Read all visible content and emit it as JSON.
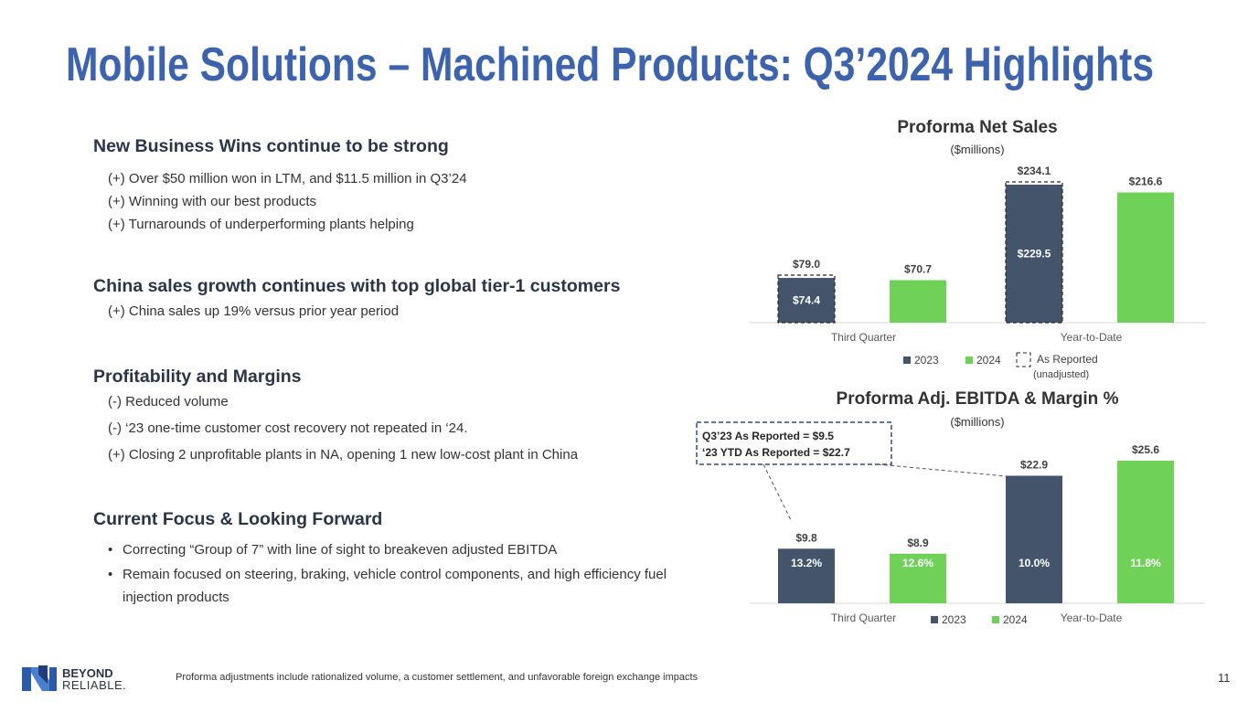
{
  "title": "Mobile Solutions – Machined Products: Q3’2024 Highlights",
  "sections": [
    {
      "heading": "New Business Wins continue to be strong",
      "items": [
        "(+) Over $50 million won in LTM, and $11.5 million in Q3’24",
        "(+) Winning with our best products",
        "(+) Turnarounds of underperforming plants helping"
      ]
    },
    {
      "heading": "China sales growth continues with top global tier-1 customers",
      "items": [
        "(+) China sales up 19% versus prior year period"
      ]
    },
    {
      "heading": "Profitability and Margins",
      "items": [
        "(-) Reduced volume",
        "(-) ‘23 one-time customer cost recovery not repeated in ‘24.",
        "(+) Closing 2 unprofitable plants in NA, opening 1 new low-cost plant in China"
      ]
    },
    {
      "heading": "Current Focus & Looking Forward",
      "bullets": [
        "Correcting “Group of 7” with line of sight to breakeven adjusted EBITDA",
        "Remain focused on steering, braking, vehicle control components, and high efficiency fuel injection products"
      ]
    }
  ],
  "chart_data": [
    {
      "type": "bar",
      "title": "Proforma Net Sales",
      "subtitle": "($millions)",
      "categories": [
        "Third Quarter",
        "Year-to-Date"
      ],
      "series": [
        {
          "name": "2023",
          "color": "#44546a",
          "values": [
            74.4,
            229.5
          ],
          "value_labels": [
            "$74.4",
            "$229.5"
          ]
        },
        {
          "name": "2024",
          "color": "#6fd157",
          "values": [
            70.7,
            216.6
          ],
          "value_labels": [
            "$70.7",
            "$216.6"
          ]
        },
        {
          "name": "As Reported",
          "note": "(unadjusted)",
          "style": "dashed-outline",
          "color": "#262626",
          "values": [
            79.0,
            234.1
          ],
          "value_labels": [
            "$79.0",
            "$234.1"
          ]
        }
      ]
    },
    {
      "type": "bar",
      "title": "Proforma Adj. EBITDA & Margin %",
      "subtitle": "($millions)",
      "categories": [
        "Third Quarter",
        "Year-to-Date"
      ],
      "series": [
        {
          "name": "2023",
          "color": "#44546a",
          "values": [
            9.8,
            22.9
          ],
          "value_labels": [
            "$9.8",
            "$22.9"
          ],
          "margins": [
            13.2,
            10.0
          ],
          "margin_labels": [
            "13.2%",
            "10.0%"
          ]
        },
        {
          "name": "2024",
          "color": "#6fd157",
          "values": [
            8.9,
            25.6
          ],
          "value_labels": [
            "$8.9",
            "$25.6"
          ],
          "margins": [
            12.6,
            11.8
          ],
          "margin_labels": [
            "12.6%",
            "11.8%"
          ]
        }
      ],
      "annotations": [
        "Q3’23 As Reported =  $9.5",
        "‘23 YTD As Reported = $22.7"
      ]
    }
  ],
  "footnote": "Proforma adjustments include rationalized volume, a customer settlement, and unfavorable foreign exchange impacts",
  "page_number": "11",
  "logo": {
    "line1": "BEYOND",
    "line2": "RELIABLE."
  }
}
